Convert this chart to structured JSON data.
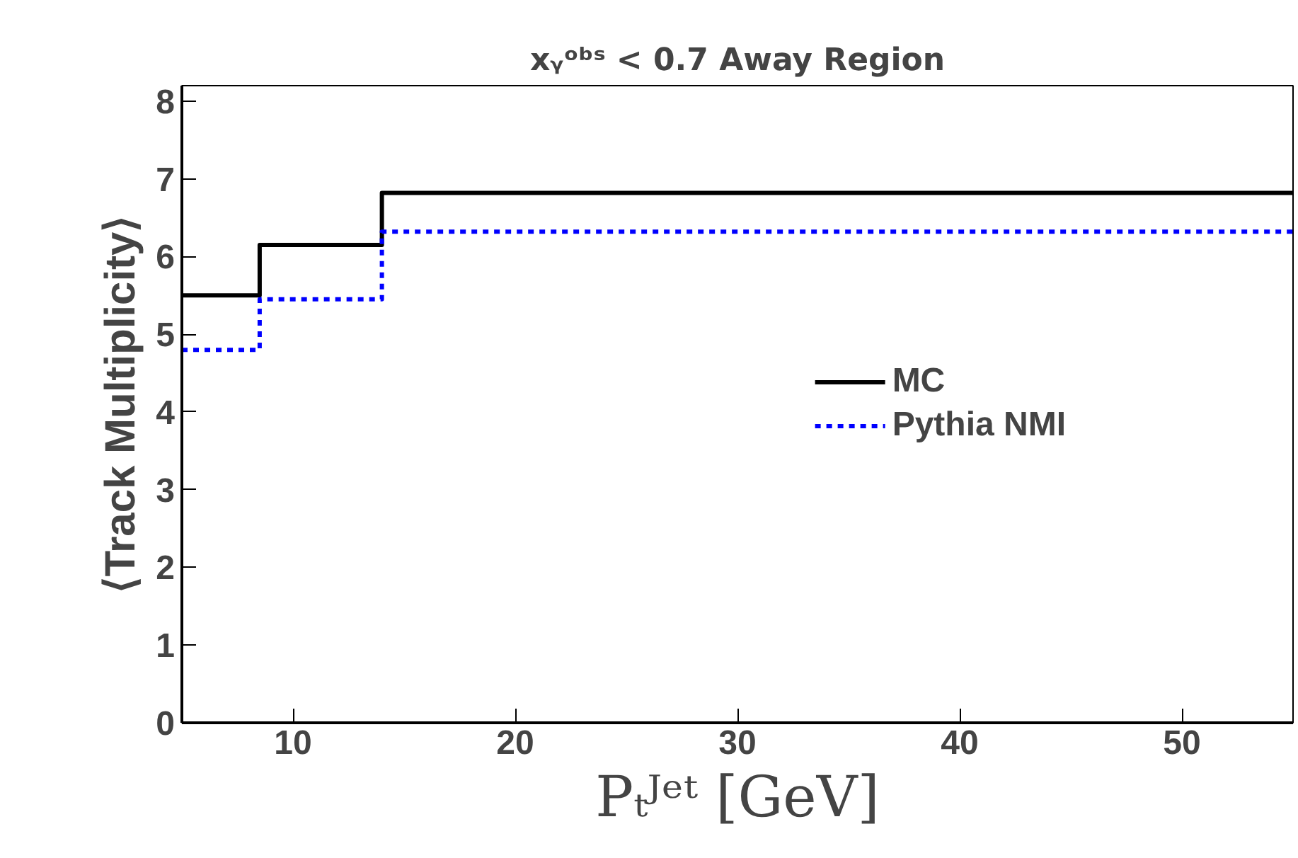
{
  "chart_data": {
    "type": "histogram",
    "title": "xᵧᵒᵇˢ < 0.7 Away Region",
    "xlabel": "Pₜᴶᵉᵗ [GeV]",
    "ylabel": "⟨Track Multiplicity⟩",
    "bins": [
      5,
      8.5,
      14,
      55
    ],
    "series": [
      {
        "name": "MC",
        "color": "#000000",
        "values": [
          5.5,
          6.15,
          6.82
        ],
        "line_style": "solid"
      },
      {
        "name": "Pythia NMI",
        "color": "#0000ff",
        "values": [
          4.8,
          5.45,
          6.32
        ],
        "line_style": "dotted"
      }
    ],
    "xlim": [
      5,
      55
    ],
    "ylim": [
      0,
      8.2
    ],
    "xticks": [
      10,
      20,
      30,
      40,
      50
    ],
    "yticks": [
      0,
      1,
      2,
      3,
      4,
      5,
      6,
      7,
      8
    ],
    "grid": false,
    "legend": "right"
  }
}
